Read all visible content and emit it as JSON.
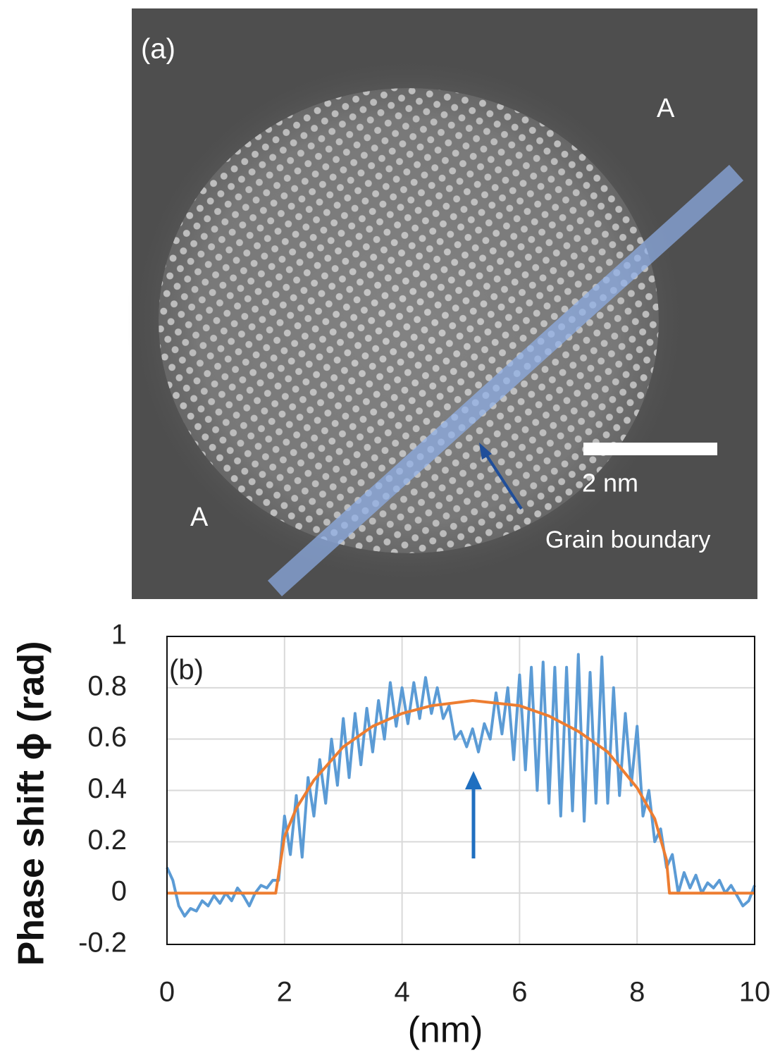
{
  "panel_a": {
    "label": "(a)",
    "region_labels": [
      "A",
      "A"
    ],
    "scale_bar": "2 nm",
    "annotation": "Grain boundary"
  },
  "chart_data": {
    "type": "line",
    "annotation": "(b)",
    "y_label": "Phase shift ϕ (rad)",
    "x_label": "(nm)",
    "xlim": [
      0,
      10
    ],
    "xticks": [
      0,
      2,
      4,
      6,
      8,
      10
    ],
    "ylim": [
      -0.2,
      1
    ],
    "yticks": [
      -0.2,
      0,
      0.2,
      0.4,
      0.6,
      0.8,
      1
    ],
    "grid": true,
    "series": [
      {
        "color": "#5b9bd5",
        "x": [
          0,
          0.1,
          0.2,
          0.3,
          0.4,
          0.5,
          0.6,
          0.7,
          0.8,
          0.9,
          1.0,
          1.1,
          1.2,
          1.3,
          1.4,
          1.5,
          1.6,
          1.7,
          1.8,
          1.9,
          2.0,
          2.1,
          2.2,
          2.3,
          2.4,
          2.5,
          2.6,
          2.7,
          2.8,
          2.9,
          3.0,
          3.1,
          3.2,
          3.3,
          3.4,
          3.5,
          3.6,
          3.7,
          3.8,
          3.9,
          4.0,
          4.1,
          4.2,
          4.3,
          4.4,
          4.5,
          4.6,
          4.7,
          4.8,
          4.9,
          5.0,
          5.1,
          5.2,
          5.3,
          5.4,
          5.5,
          5.6,
          5.7,
          5.8,
          5.9,
          6.0,
          6.1,
          6.2,
          6.3,
          6.4,
          6.5,
          6.6,
          6.7,
          6.8,
          6.9,
          7.0,
          7.1,
          7.2,
          7.3,
          7.4,
          7.5,
          7.6,
          7.7,
          7.8,
          7.9,
          8.0,
          8.1,
          8.2,
          8.3,
          8.4,
          8.5,
          8.6,
          8.7,
          8.8,
          8.9,
          9.0,
          9.1,
          9.2,
          9.3,
          9.4,
          9.5,
          9.6,
          9.7,
          9.8,
          9.9,
          10.0
        ],
        "values": [
          0.1,
          0.05,
          -0.05,
          -0.09,
          -0.06,
          -0.07,
          -0.03,
          -0.05,
          -0.01,
          -0.04,
          0.0,
          -0.03,
          0.02,
          -0.01,
          -0.05,
          0.0,
          0.03,
          0.02,
          0.05,
          0.05,
          0.3,
          0.15,
          0.38,
          0.14,
          0.45,
          0.3,
          0.52,
          0.35,
          0.6,
          0.42,
          0.68,
          0.45,
          0.7,
          0.5,
          0.72,
          0.55,
          0.75,
          0.6,
          0.82,
          0.65,
          0.8,
          0.66,
          0.82,
          0.68,
          0.84,
          0.7,
          0.8,
          0.68,
          0.73,
          0.6,
          0.63,
          0.57,
          0.64,
          0.55,
          0.66,
          0.6,
          0.78,
          0.62,
          0.8,
          0.52,
          0.85,
          0.48,
          0.88,
          0.4,
          0.9,
          0.35,
          0.88,
          0.3,
          0.88,
          0.32,
          0.93,
          0.28,
          0.86,
          0.35,
          0.92,
          0.35,
          0.8,
          0.38,
          0.7,
          0.42,
          0.65,
          0.3,
          0.4,
          0.2,
          0.25,
          0.1,
          0.15,
          0.0,
          0.08,
          0.02,
          0.07,
          0.0,
          0.04,
          0.02,
          0.05,
          0.0,
          0.03,
          -0.01,
          -0.05,
          -0.03,
          0.03
        ]
      },
      {
        "color": "#ed7d31",
        "x": [
          0,
          1.85,
          2.0,
          2.2,
          2.5,
          3.0,
          3.5,
          4.0,
          4.5,
          5.2,
          6.0,
          6.5,
          7.0,
          7.5,
          8.0,
          8.3,
          8.5,
          8.55,
          10
        ],
        "values": [
          0,
          0,
          0.22,
          0.33,
          0.44,
          0.57,
          0.65,
          0.7,
          0.73,
          0.75,
          0.73,
          0.69,
          0.63,
          0.55,
          0.41,
          0.29,
          0.13,
          0,
          0
        ]
      }
    ]
  }
}
